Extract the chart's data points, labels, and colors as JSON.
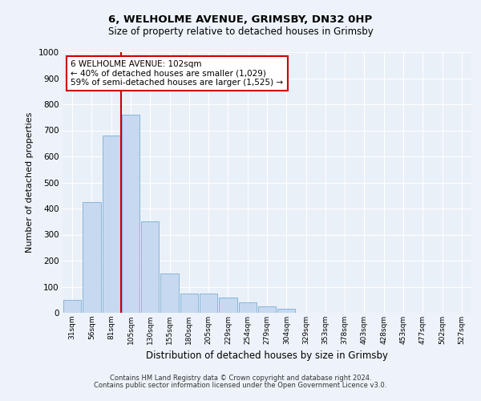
{
  "title1": "6, WELHOLME AVENUE, GRIMSBY, DN32 0HP",
  "title2": "Size of property relative to detached houses in Grimsby",
  "xlabel": "Distribution of detached houses by size in Grimsby",
  "ylabel": "Number of detached properties",
  "categories": [
    "31sqm",
    "56sqm",
    "81sqm",
    "105sqm",
    "130sqm",
    "155sqm",
    "180sqm",
    "205sqm",
    "229sqm",
    "254sqm",
    "279sqm",
    "304sqm",
    "329sqm",
    "353sqm",
    "378sqm",
    "403sqm",
    "428sqm",
    "453sqm",
    "477sqm",
    "502sqm",
    "527sqm"
  ],
  "values": [
    50,
    425,
    680,
    760,
    350,
    150,
    75,
    75,
    60,
    40,
    25,
    15,
    0,
    0,
    0,
    0,
    0,
    0,
    0,
    0,
    0
  ],
  "bar_color": "#c6d9f0",
  "bar_edge_color": "#7aafd4",
  "vline_x_index": 3,
  "vline_color": "#cc0000",
  "annotation_text": "6 WELHOLME AVENUE: 102sqm\n← 40% of detached houses are smaller (1,029)\n59% of semi-detached houses are larger (1,525) →",
  "annotation_box_color": "#ffffff",
  "annotation_box_edge": "#cc0000",
  "ylim": [
    0,
    1000
  ],
  "yticks": [
    0,
    100,
    200,
    300,
    400,
    500,
    600,
    700,
    800,
    900,
    1000
  ],
  "footer1": "Contains HM Land Registry data © Crown copyright and database right 2024.",
  "footer2": "Contains public sector information licensed under the Open Government Licence v3.0.",
  "bg_color": "#eef3fb",
  "plot_bg_color": "#eaf0f8",
  "grid_color": "#ffffff"
}
